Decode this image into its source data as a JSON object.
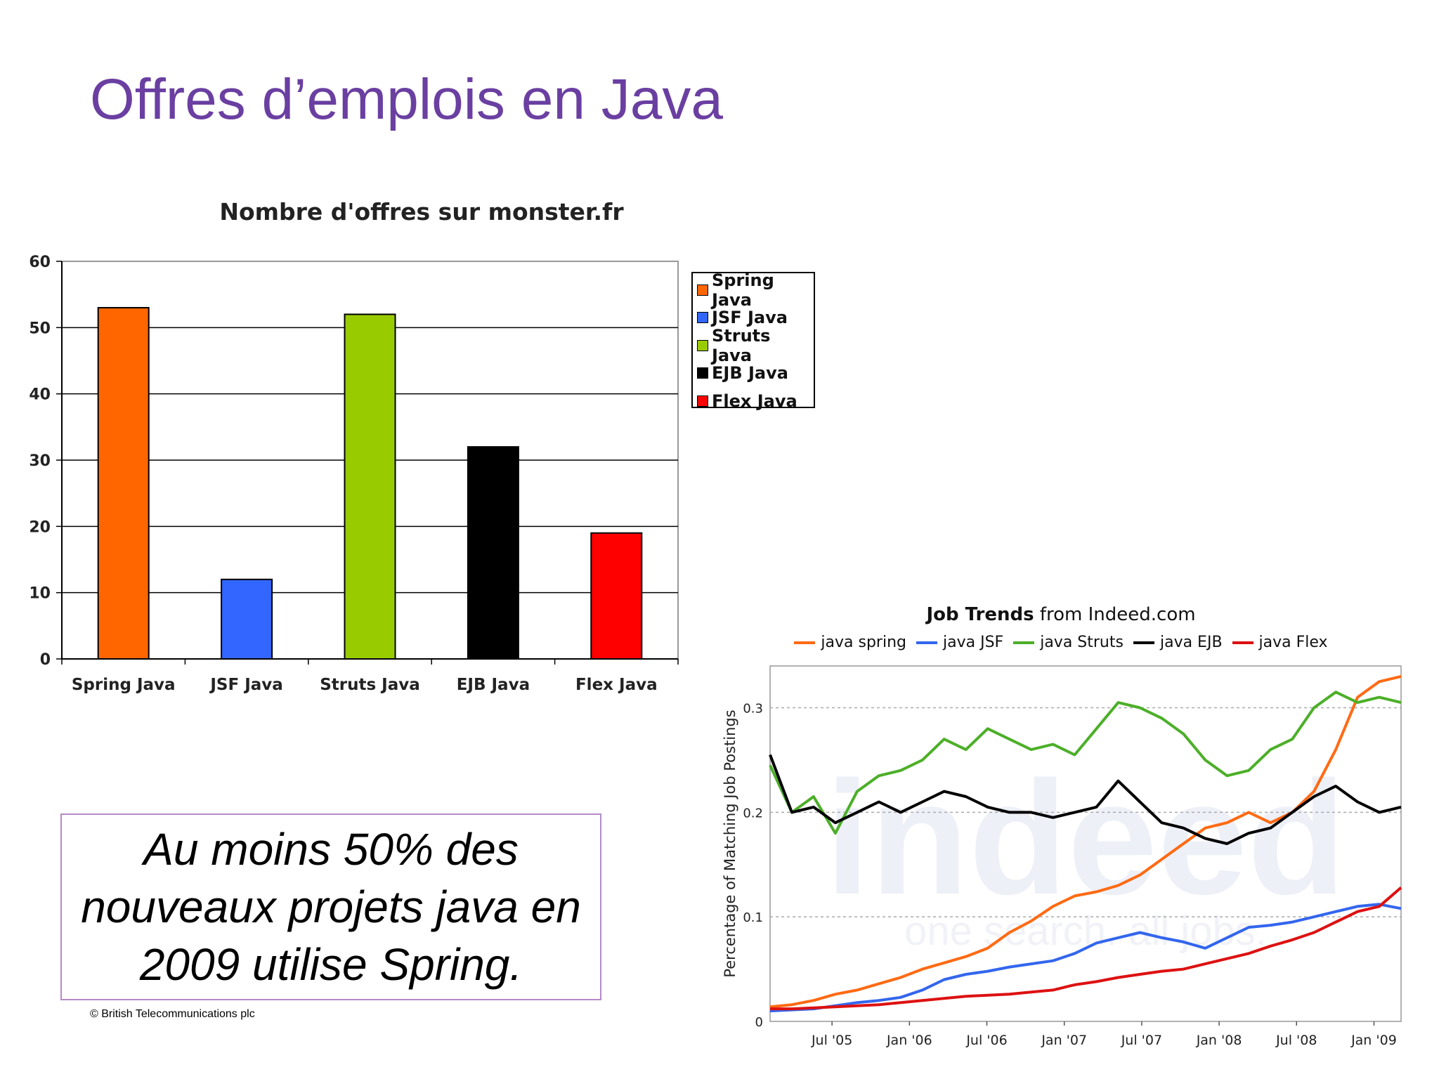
{
  "slide": {
    "title": "Offres d’emplois en Java",
    "quote": "Au moins 50% des nouveaux projets java en 2009 utilise Spring.",
    "copyright": "© British Telecommunications plc"
  },
  "chart_data": [
    {
      "type": "bar",
      "title": "Nombre d'offres sur monster.fr",
      "categories": [
        "Spring Java",
        "JSF Java",
        "Struts Java",
        "EJB Java",
        "Flex Java"
      ],
      "values": [
        53,
        12,
        52,
        32,
        19
      ],
      "colors": [
        "#ff6600",
        "#3366ff",
        "#99cc00",
        "#000000",
        "#ff0000"
      ],
      "ylim": [
        0,
        60
      ],
      "yticks": [
        "0",
        "10",
        "20",
        "30",
        "40",
        "50",
        "60"
      ],
      "grid": true,
      "legend_position": "right",
      "legend": [
        "Spring Java",
        "JSF Java",
        "Struts Java",
        "EJB Java",
        "Flex Java"
      ]
    },
    {
      "type": "line",
      "title": "Job Trends",
      "title_suffix": "from Indeed.com",
      "ylabel": "Percentage of Matching Job Postings",
      "ylim": [
        0,
        0.34
      ],
      "yticks": [
        "0",
        "0.1",
        "0.2",
        "0.3"
      ],
      "xticks": [
        "Jul '05",
        "Jan '06",
        "Jul '06",
        "Jan '07",
        "Jul '07",
        "Jan '08",
        "Jul '08",
        "Jan '09"
      ],
      "x_range": [
        "2005-01",
        "2009-03"
      ],
      "watermark": "indeed",
      "watermark_tagline": "one search. all jobs.",
      "legend_position": "top",
      "series": [
        {
          "name": "java spring",
          "color": "#ff6a13",
          "values": [
            0.014,
            0.016,
            0.02,
            0.026,
            0.03,
            0.036,
            0.042,
            0.05,
            0.056,
            0.062,
            0.07,
            0.085,
            0.096,
            0.11,
            0.12,
            0.124,
            0.13,
            0.14,
            0.155,
            0.17,
            0.185,
            0.19,
            0.2,
            0.19,
            0.2,
            0.22,
            0.26,
            0.31,
            0.325,
            0.33
          ]
        },
        {
          "name": "java JSF",
          "color": "#3366ee",
          "values": [
            0.01,
            0.011,
            0.012,
            0.015,
            0.018,
            0.02,
            0.023,
            0.03,
            0.04,
            0.045,
            0.048,
            0.052,
            0.055,
            0.058,
            0.065,
            0.075,
            0.08,
            0.085,
            0.08,
            0.076,
            0.07,
            0.08,
            0.09,
            0.092,
            0.095,
            0.1,
            0.105,
            0.11,
            0.112,
            0.108
          ]
        },
        {
          "name": "java  Struts",
          "color": "#4caf28",
          "values": [
            0.245,
            0.2,
            0.215,
            0.18,
            0.22,
            0.235,
            0.24,
            0.25,
            0.27,
            0.26,
            0.28,
            0.27,
            0.26,
            0.265,
            0.255,
            0.28,
            0.305,
            0.3,
            0.29,
            0.275,
            0.25,
            0.235,
            0.24,
            0.26,
            0.27,
            0.3,
            0.315,
            0.305,
            0.31,
            0.305
          ]
        },
        {
          "name": "java EJB",
          "color": "#000000",
          "values": [
            0.255,
            0.2,
            0.205,
            0.19,
            0.2,
            0.21,
            0.2,
            0.21,
            0.22,
            0.215,
            0.205,
            0.2,
            0.2,
            0.195,
            0.2,
            0.205,
            0.23,
            0.21,
            0.19,
            0.185,
            0.175,
            0.17,
            0.18,
            0.185,
            0.2,
            0.215,
            0.225,
            0.21,
            0.2,
            0.205
          ]
        },
        {
          "name": "java Flex",
          "color": "#dd1111",
          "values": [
            0.012,
            0.012,
            0.013,
            0.014,
            0.015,
            0.016,
            0.018,
            0.02,
            0.022,
            0.024,
            0.025,
            0.026,
            0.028,
            0.03,
            0.035,
            0.038,
            0.042,
            0.045,
            0.048,
            0.05,
            0.055,
            0.06,
            0.065,
            0.072,
            0.078,
            0.085,
            0.095,
            0.105,
            0.11,
            0.128
          ]
        }
      ]
    }
  ]
}
